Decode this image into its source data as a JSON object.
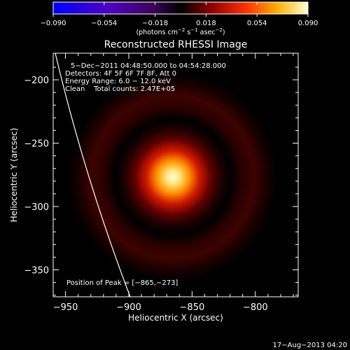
{
  "colorbar": {
    "ticks": [
      "−0.090",
      "−0.054",
      "−0.018",
      "0.018",
      "0.054",
      "0.090"
    ],
    "units_main": "(photons cm",
    "units_exp1": "−2",
    "units_mid": " s",
    "units_exp2": "−1",
    "units_tail": " asec",
    "units_exp3": "−2",
    "units_end": ")",
    "colors": [
      "#0000ff",
      "#6a0095",
      "#000000",
      "#c01010",
      "#ff8800",
      "#ffffcc"
    ]
  },
  "plot": {
    "title": "Reconstructed RHESSI Image",
    "xlabel": "Heliocentric X (arcsec)",
    "ylabel": "Heliocentric Y (arcsec)",
    "xticks": [
      "−950",
      "−900",
      "−850",
      "−800"
    ],
    "yticks": [
      "−200",
      "−250",
      "−300",
      "−350"
    ],
    "xlim": [
      -960,
      -834
    ],
    "ylim": [
      -370,
      -178
    ]
  },
  "annotations": {
    "time_range": "5−Dec−2011 04:48:50.000 to 04:54:28.000",
    "detectors": "Detectors: 4F 5F 6F 7F 8F, Att 0",
    "energy": "Energy Range: 6.0 − 12.0 keV",
    "clean": "Clean    Total counts: 2.47E+05",
    "peak": "Position of Peak = [−865,−273]"
  },
  "footer": {
    "date": "17−Aug−2013 04:20"
  }
}
